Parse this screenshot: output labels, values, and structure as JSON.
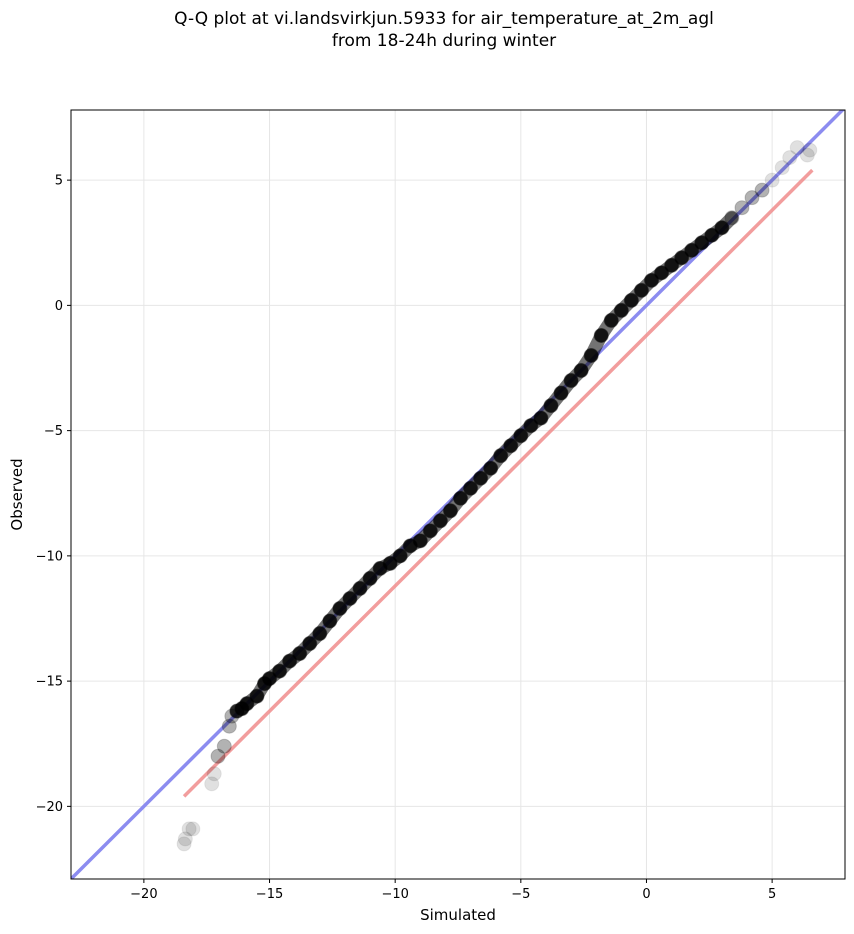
{
  "chart_data": {
    "type": "scatter",
    "title_lines": [
      "Q-Q plot at vi.landsvirkjun.5933 for air_temperature_at_2m_agl",
      "from 18-24h during winter"
    ],
    "xlabel": "Simulated",
    "ylabel": "Observed",
    "xlim": [
      -22.9,
      7.9
    ],
    "ylim": [
      -22.9,
      7.8
    ],
    "xticks": [
      -20,
      -15,
      -10,
      -5,
      0,
      5
    ],
    "yticks": [
      5,
      0,
      -5,
      -10,
      -15,
      -20
    ],
    "grid": true,
    "colors": {
      "points": "#000000",
      "identity_line": "#8c8cf0",
      "fit_line": "#f08c8c",
      "grid": "#e6e6e6"
    },
    "identity_line": {
      "x": [
        -22.9,
        7.9
      ],
      "y": [
        -22.9,
        7.9
      ]
    },
    "fit_line": {
      "x": [
        -18.4,
        6.6
      ],
      "y": [
        -19.6,
        5.4
      ]
    },
    "qq_points": {
      "x": [
        -18.4,
        -18.35,
        -18.2,
        -18.05,
        -17.3,
        -17.2,
        -17.05,
        -16.8,
        -16.6,
        -16.5,
        -16.3,
        -16.1,
        -15.9,
        -15.5,
        -15.2,
        -15.0,
        -14.6,
        -14.2,
        -13.8,
        -13.4,
        -13.0,
        -12.6,
        -12.2,
        -11.8,
        -11.4,
        -11.0,
        -10.6,
        -10.2,
        -9.8,
        -9.4,
        -9.0,
        -8.6,
        -8.2,
        -7.8,
        -7.4,
        -7.0,
        -6.6,
        -6.2,
        -5.8,
        -5.4,
        -5.0,
        -4.6,
        -4.2,
        -3.8,
        -3.4,
        -3.0,
        -2.6,
        -2.2,
        -1.8,
        -1.4,
        -1.0,
        -0.6,
        -0.2,
        0.2,
        0.6,
        1.0,
        1.4,
        1.8,
        2.2,
        2.6,
        3.0,
        3.4,
        3.8,
        4.2,
        4.6,
        5.0,
        5.4,
        5.7,
        6.0,
        6.4,
        6.5
      ],
      "y": [
        -21.5,
        -21.3,
        -20.9,
        -20.9,
        -19.1,
        -18.7,
        -18.0,
        -17.6,
        -16.8,
        -16.4,
        -16.2,
        -16.1,
        -15.9,
        -15.6,
        -15.1,
        -14.9,
        -14.6,
        -14.2,
        -13.9,
        -13.5,
        -13.1,
        -12.6,
        -12.1,
        -11.7,
        -11.3,
        -10.9,
        -10.5,
        -10.3,
        -10.0,
        -9.6,
        -9.4,
        -9.0,
        -8.6,
        -8.2,
        -7.7,
        -7.3,
        -6.9,
        -6.5,
        -6.0,
        -5.6,
        -5.2,
        -4.8,
        -4.5,
        -4.0,
        -3.5,
        -3.0,
        -2.6,
        -2.0,
        -1.2,
        -0.6,
        -0.2,
        0.2,
        0.6,
        1.0,
        1.3,
        1.6,
        1.9,
        2.2,
        2.5,
        2.8,
        3.1,
        3.5,
        3.9,
        4.3,
        4.6,
        5.0,
        5.5,
        5.9,
        6.3,
        6.0,
        6.2
      ]
    }
  }
}
